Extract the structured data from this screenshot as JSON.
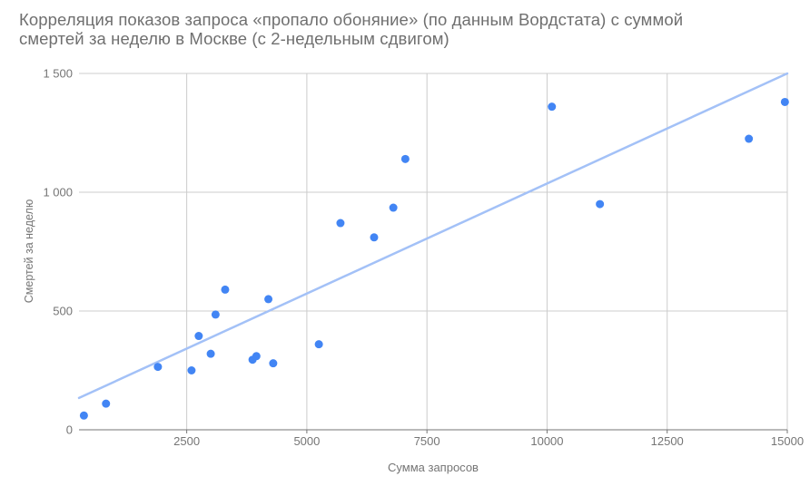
{
  "title_lines": [
    "Корреляция показов запроса «пропало обоняние» (по данным Вордстата) с суммой",
    "смертей за неделю в Москве (с 2-недельным сдвигом)"
  ],
  "colors": {
    "point": "#4285F4",
    "trendline": "#A3C1F7",
    "grid": "#CCCCCC",
    "axis": "#757575",
    "tick_label": "#757575",
    "title": "#6F6F6F",
    "background": "#FFFFFF"
  },
  "chart_data": {
    "type": "scatter",
    "title": "Корреляция показов запроса «пропало обоняние» (по данным Вордстата) с суммой смертей за неделю в Москве (с 2-недельным сдвигом)",
    "xlabel": "Сумма запросов",
    "ylabel": "Смертей за неделю",
    "xlim": [
      258,
      15000
    ],
    "ylim": [
      0,
      1500
    ],
    "x_ticks": [
      2500,
      5000,
      7500,
      10000,
      12500,
      15000
    ],
    "x_tick_labels": [
      "2500",
      "5000",
      "7500",
      "10000",
      "12500",
      "15000"
    ],
    "y_ticks": [
      0,
      500,
      1000,
      1500
    ],
    "y_tick_labels": [
      "0",
      "500",
      "1 000",
      "1 500"
    ],
    "grid": true,
    "legend_position": "none",
    "points": [
      [
        360,
        60
      ],
      [
        820,
        110
      ],
      [
        1900,
        265
      ],
      [
        2600,
        250
      ],
      [
        2750,
        395
      ],
      [
        3000,
        320
      ],
      [
        3100,
        485
      ],
      [
        3300,
        590
      ],
      [
        3870,
        295
      ],
      [
        3950,
        310
      ],
      [
        4200,
        550
      ],
      [
        4300,
        280
      ],
      [
        5250,
        360
      ],
      [
        5700,
        870
      ],
      [
        6400,
        810
      ],
      [
        6800,
        935
      ],
      [
        7050,
        1140
      ],
      [
        10100,
        1360
      ],
      [
        11100,
        950
      ],
      [
        14200,
        1225
      ],
      [
        14950,
        1380
      ]
    ],
    "trendline": {
      "x1": 258,
      "y1": 134,
      "x2": 15000,
      "y2": 1500
    }
  }
}
